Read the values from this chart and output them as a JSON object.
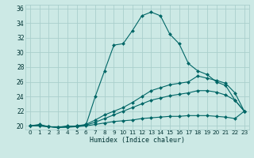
{
  "xlabel": "Humidex (Indice chaleur)",
  "xlim": [
    -0.5,
    23.5
  ],
  "ylim": [
    19.5,
    36.5
  ],
  "xticks": [
    0,
    1,
    2,
    3,
    4,
    5,
    6,
    7,
    8,
    9,
    10,
    11,
    12,
    13,
    14,
    15,
    16,
    17,
    18,
    19,
    20,
    21,
    22,
    23
  ],
  "yticks": [
    20,
    22,
    24,
    26,
    28,
    30,
    32,
    34,
    36
  ],
  "bg_color": "#cce9e5",
  "grid_color": "#aacfcc",
  "line_color": "#006666",
  "curves": {
    "c1": [
      20.0,
      20.2,
      19.9,
      19.8,
      20.0,
      19.9,
      20.1,
      24.0,
      27.5,
      31.0,
      31.2,
      33.0,
      35.0,
      35.5,
      35.0,
      32.5,
      31.2,
      28.5,
      27.5,
      27.0,
      26.0,
      25.5,
      23.5,
      22.0
    ],
    "c2": [
      20.0,
      20.1,
      19.9,
      19.8,
      19.9,
      20.0,
      20.2,
      20.8,
      21.5,
      22.0,
      22.5,
      23.2,
      24.0,
      24.8,
      25.2,
      25.6,
      25.8,
      26.0,
      26.8,
      26.5,
      26.2,
      25.8,
      24.5,
      22.0
    ],
    "c3": [
      20.0,
      20.0,
      19.9,
      19.8,
      19.9,
      20.0,
      20.1,
      20.5,
      21.0,
      21.5,
      22.0,
      22.5,
      23.0,
      23.5,
      23.8,
      24.1,
      24.3,
      24.5,
      24.8,
      24.8,
      24.6,
      24.2,
      23.5,
      22.0
    ],
    "c4": [
      20.0,
      20.0,
      19.9,
      19.8,
      19.8,
      19.9,
      20.0,
      20.2,
      20.4,
      20.6,
      20.7,
      20.8,
      21.0,
      21.1,
      21.2,
      21.3,
      21.3,
      21.4,
      21.4,
      21.4,
      21.3,
      21.2,
      21.0,
      22.0
    ]
  }
}
